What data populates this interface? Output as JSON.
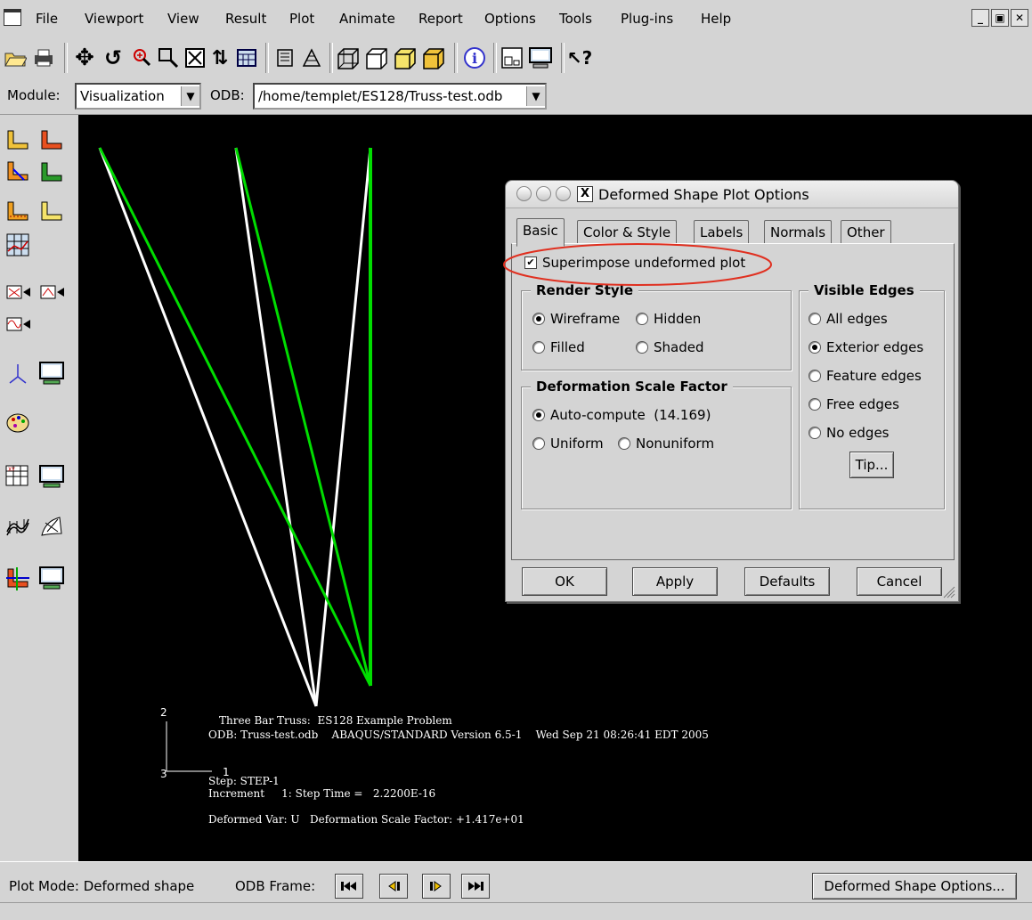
{
  "menubar": {
    "items": [
      {
        "label": "File"
      },
      {
        "label": "Viewport"
      },
      {
        "label": "View"
      },
      {
        "label": "Result"
      },
      {
        "label": "Plot"
      },
      {
        "label": "Animate"
      },
      {
        "label": "Report"
      },
      {
        "label": "Options"
      },
      {
        "label": "Tools"
      },
      {
        "label": "Plug-ins"
      },
      {
        "label": "Help"
      }
    ]
  },
  "toolbar": {
    "icons": [
      "open-icon",
      "print-icon",
      "pan-icon",
      "rotate-icon",
      "magnify-icon",
      "box-zoom-icon",
      "auto-fit-icon",
      "cycle-views-icon",
      "table-icon",
      "list-icon",
      "mesh-icon",
      "iso-view-icon",
      "iso-view2-icon",
      "iso-view3-icon",
      "iso-view4-icon",
      "info-icon",
      "layout-icon",
      "monitor-icon",
      "query-help-icon"
    ]
  },
  "module_bar": {
    "module_label": "Module:",
    "module_value": "Visualization",
    "odb_label": "ODB:",
    "odb_value": "/home/templet/ES128/Truss-test.odb"
  },
  "viewport": {
    "title_line": "Three Bar Truss:  ES128 Example Problem",
    "odb_line": "ODB: Truss-test.odb    ABAQUS/STANDARD Version 6.5-1    Wed Sep 21 08:26:41 EDT 2005",
    "step_line": "Step: STEP-1",
    "increment_line": "Increment     1: Step Time =   2.2200E-16",
    "deformed_line": "Deformed Var: U   Deformation Scale Factor: +1.417e+01",
    "triad": {
      "axis_y": "2",
      "axis_z": "3",
      "axis_x": "1"
    },
    "colors": {
      "undeformed": "#ffffff",
      "deformed": "#00dd00",
      "background": "#000000"
    }
  },
  "dialog": {
    "title": "Deformed Shape Plot Options",
    "tabs": [
      "Basic",
      "Color & Style",
      "Labels",
      "Normals",
      "Other"
    ],
    "active_tab": "Basic",
    "superimpose_label": "Superimpose undeformed plot",
    "superimpose_checked": true,
    "render_style": {
      "legend": "Render Style",
      "options": [
        "Wireframe",
        "Hidden",
        "Filled",
        "Shaded"
      ],
      "selected": "Wireframe"
    },
    "scale_factor": {
      "legend": "Deformation Scale Factor",
      "options": [
        "Auto-compute  (14.169)",
        "Uniform",
        "Nonuniform"
      ],
      "selected": "Auto-compute  (14.169)"
    },
    "visible_edges": {
      "legend": "Visible Edges",
      "options": [
        "All edges",
        "Exterior edges",
        "Feature edges",
        "Free edges",
        "No edges"
      ],
      "selected": "Exterior edges",
      "tip_label": "Tip..."
    },
    "buttons": {
      "ok": "OK",
      "apply": "Apply",
      "defaults": "Defaults",
      "cancel": "Cancel"
    },
    "highlight_color": "#e03020"
  },
  "statusbar": {
    "plot_mode": "Plot Mode: Deformed shape",
    "odb_frame_label": "ODB Frame:",
    "options_button": "Deformed Shape Options..."
  }
}
